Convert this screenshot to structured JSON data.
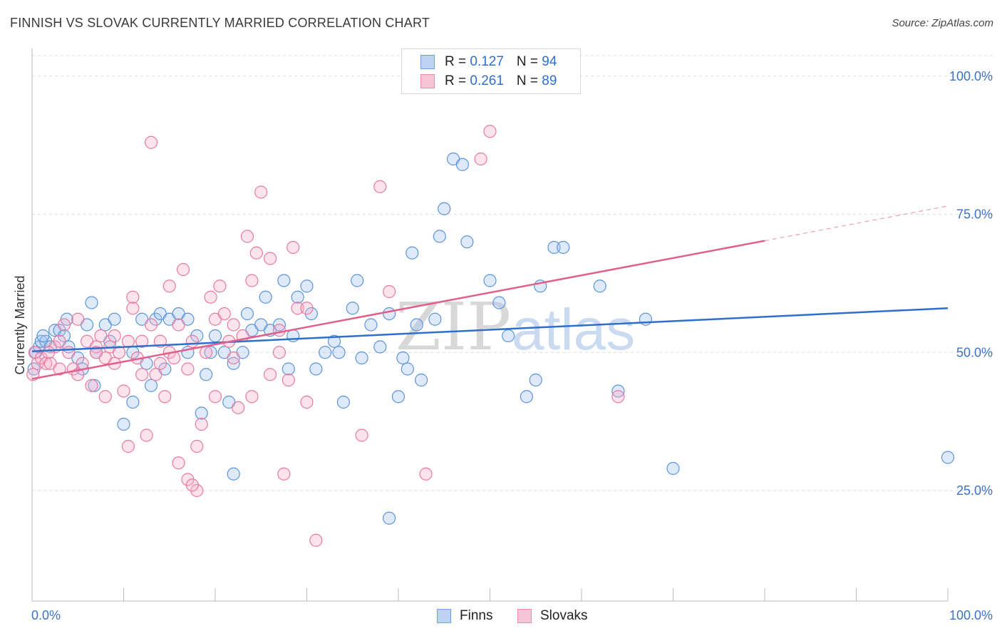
{
  "header": {
    "title": "FINNISH VS SLOVAK CURRENTLY MARRIED CORRELATION CHART",
    "source": "Source: ZipAtlas.com"
  },
  "watermark": {
    "zip": "ZIP",
    "atlas": "atlas"
  },
  "legend": {
    "rows": [
      {
        "r_label": "R = ",
        "r_value": "0.127",
        "n_label": "N = ",
        "n_value": "94",
        "color": "#6fa0e0",
        "fill": "#bcd3f2"
      },
      {
        "r_label": "R = ",
        "r_value": "0.261",
        "n_label": "N = ",
        "n_value": "89",
        "color": "#e88aa8",
        "fill": "#f7c6d6"
      }
    ],
    "bottom": [
      "Finns",
      "Slovaks"
    ]
  },
  "chart_data": {
    "type": "scatter",
    "title": "FINNISH VS SLOVAK CURRENTLY MARRIED CORRELATION CHART",
    "xlabel": "",
    "ylabel": "Currently Married",
    "xlim": [
      0,
      100
    ],
    "ylim": [
      5,
      105
    ],
    "x_tick_labels": [
      "0.0%",
      "100.0%"
    ],
    "y_tick_labels": [
      "100.0%",
      "75.0%",
      "50.0%",
      "25.0%"
    ],
    "y_ticks": [
      100,
      75,
      50,
      25
    ],
    "grid": true,
    "legend_position": "top-center",
    "series": [
      {
        "name": "Finns",
        "color": "#5b93db",
        "trend": {
          "x": [
            0,
            100
          ],
          "y": [
            50.2,
            58.0
          ],
          "dashed_from": null
        },
        "points": [
          [
            0.4,
            50
          ],
          [
            0.8,
            51
          ],
          [
            1,
            52
          ],
          [
            1.5,
            52
          ],
          [
            2,
            51
          ],
          [
            2.5,
            54
          ],
          [
            3,
            54
          ],
          [
            3.5,
            53
          ],
          [
            4,
            51
          ],
          [
            5,
            49
          ],
          [
            5.5,
            47
          ],
          [
            6,
            55
          ],
          [
            6.5,
            59
          ],
          [
            7,
            50
          ],
          [
            8,
            55
          ],
          [
            8.5,
            52
          ],
          [
            9,
            56
          ],
          [
            10,
            37
          ],
          [
            11,
            41
          ],
          [
            11,
            50
          ],
          [
            12,
            56
          ],
          [
            12.5,
            48
          ],
          [
            13,
            44
          ],
          [
            13.5,
            56
          ],
          [
            14,
            57
          ],
          [
            14.5,
            47
          ],
          [
            15,
            56
          ],
          [
            16,
            57
          ],
          [
            17,
            50
          ],
          [
            17,
            56
          ],
          [
            18,
            53
          ],
          [
            18.5,
            39
          ],
          [
            19,
            46
          ],
          [
            19.5,
            50
          ],
          [
            20,
            53
          ],
          [
            21,
            50
          ],
          [
            21.5,
            41
          ],
          [
            22,
            28
          ],
          [
            22,
            48
          ],
          [
            23,
            50
          ],
          [
            23.5,
            57
          ],
          [
            24,
            54
          ],
          [
            25,
            55
          ],
          [
            25.5,
            60
          ],
          [
            26,
            54
          ],
          [
            27,
            55
          ],
          [
            27.5,
            63
          ],
          [
            28,
            47
          ],
          [
            28.5,
            53
          ],
          [
            29,
            60
          ],
          [
            30,
            62
          ],
          [
            30.5,
            57
          ],
          [
            31,
            47
          ],
          [
            32,
            50
          ],
          [
            33,
            52
          ],
          [
            33.5,
            50
          ],
          [
            34,
            41
          ],
          [
            35,
            58
          ],
          [
            35.5,
            63
          ],
          [
            36,
            49
          ],
          [
            37,
            55
          ],
          [
            38,
            51
          ],
          [
            39,
            57
          ],
          [
            39,
            20
          ],
          [
            40,
            42
          ],
          [
            40.5,
            49
          ],
          [
            41,
            47
          ],
          [
            41.5,
            68
          ],
          [
            42,
            55
          ],
          [
            42.5,
            45
          ],
          [
            44,
            56
          ],
          [
            44.5,
            71
          ],
          [
            45,
            76
          ],
          [
            46,
            85
          ],
          [
            47,
            84
          ],
          [
            47.5,
            70
          ],
          [
            50,
            63
          ],
          [
            51,
            59
          ],
          [
            52,
            53
          ],
          [
            54,
            42
          ],
          [
            55,
            45
          ],
          [
            55.5,
            62
          ],
          [
            57,
            69
          ],
          [
            58,
            69
          ],
          [
            62,
            62
          ],
          [
            64,
            43
          ],
          [
            67,
            56
          ],
          [
            70,
            29
          ],
          [
            100,
            31
          ],
          [
            0.2,
            47
          ],
          [
            1.2,
            53
          ],
          [
            3.8,
            56
          ],
          [
            6.8,
            44
          ]
        ]
      },
      {
        "name": "Slovaks",
        "color": "#e8799e",
        "trend": {
          "x": [
            0,
            80,
            100
          ],
          "y": [
            45.2,
            70.2,
            76.5
          ],
          "dashed_from": 80
        },
        "points": [
          [
            0.3,
            50
          ],
          [
            0.6,
            48
          ],
          [
            1,
            49
          ],
          [
            1.5,
            48
          ],
          [
            2,
            48
          ],
          [
            2.5,
            51
          ],
          [
            3,
            52
          ],
          [
            3.5,
            55
          ],
          [
            4,
            50
          ],
          [
            4.5,
            47
          ],
          [
            5,
            46
          ],
          [
            5.5,
            48
          ],
          [
            6,
            52
          ],
          [
            6.5,
            44
          ],
          [
            7,
            51
          ],
          [
            7.5,
            53
          ],
          [
            8,
            42
          ],
          [
            8.5,
            51
          ],
          [
            9,
            48
          ],
          [
            9.5,
            50
          ],
          [
            10,
            43
          ],
          [
            10.5,
            52
          ],
          [
            11,
            58
          ],
          [
            11.5,
            49
          ],
          [
            12,
            46
          ],
          [
            12.5,
            35
          ],
          [
            13,
            55
          ],
          [
            13.5,
            46
          ],
          [
            14,
            48
          ],
          [
            14.5,
            42
          ],
          [
            15,
            50
          ],
          [
            15.5,
            49
          ],
          [
            16,
            55
          ],
          [
            16.5,
            65
          ],
          [
            17,
            47
          ],
          [
            17.5,
            52
          ],
          [
            18,
            33
          ],
          [
            18,
            25
          ],
          [
            19,
            50
          ],
          [
            19.5,
            60
          ],
          [
            20,
            56
          ],
          [
            20.5,
            62
          ],
          [
            21,
            57
          ],
          [
            21.5,
            52
          ],
          [
            22,
            49
          ],
          [
            22.5,
            40
          ],
          [
            23,
            53
          ],
          [
            23.5,
            71
          ],
          [
            24,
            42
          ],
          [
            24.5,
            68
          ],
          [
            25,
            79
          ],
          [
            26,
            67
          ],
          [
            27,
            50
          ],
          [
            27.5,
            28
          ],
          [
            28,
            45
          ],
          [
            28.5,
            69
          ],
          [
            29,
            58
          ],
          [
            30,
            41
          ],
          [
            31,
            16
          ],
          [
            36,
            35
          ],
          [
            38,
            80
          ],
          [
            39,
            61
          ],
          [
            43,
            28
          ],
          [
            49,
            85
          ],
          [
            50,
            90
          ],
          [
            64,
            42
          ],
          [
            13,
            88
          ],
          [
            10.5,
            33
          ],
          [
            17,
            27
          ],
          [
            17.5,
            26
          ],
          [
            9,
            53
          ],
          [
            3,
            47
          ],
          [
            1.8,
            50
          ],
          [
            0.1,
            46
          ],
          [
            5,
            56
          ],
          [
            8,
            49
          ],
          [
            14,
            52
          ],
          [
            20,
            42
          ],
          [
            22,
            55
          ],
          [
            26,
            46
          ],
          [
            30,
            58
          ],
          [
            11,
            60
          ],
          [
            12,
            52
          ],
          [
            16,
            30
          ],
          [
            18.5,
            37
          ],
          [
            24,
            63
          ],
          [
            27,
            54
          ],
          [
            7,
            50
          ],
          [
            15,
            62
          ]
        ]
      }
    ]
  }
}
